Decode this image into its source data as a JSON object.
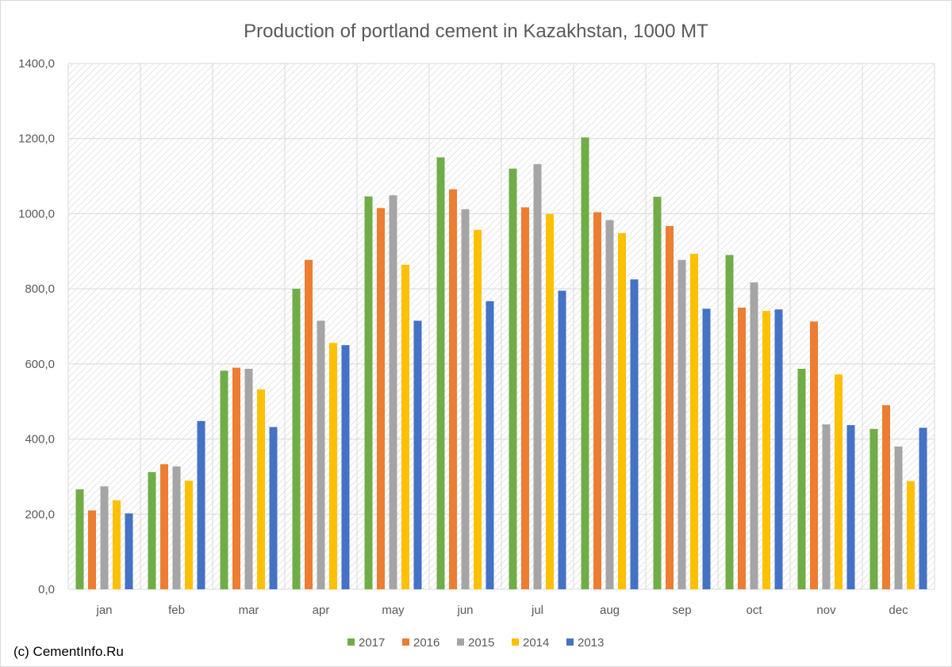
{
  "credit": "(c) CementInfo.Ru",
  "chart_data": {
    "type": "bar",
    "title": "Production of portland cement in Kazakhstan, 1000 MT",
    "xlabel": "",
    "ylabel": "",
    "ylim": [
      0,
      1400
    ],
    "yticks": [
      0,
      200,
      400,
      600,
      800,
      1000,
      1200,
      1400
    ],
    "ytick_labels": [
      "0,0",
      "200,0",
      "400,0",
      "600,0",
      "800,0",
      "1000,0",
      "1200,0",
      "1400,0"
    ],
    "grid": true,
    "legend_position": "bottom",
    "categories": [
      "jan",
      "feb",
      "mar",
      "apr",
      "may",
      "jun",
      "jul",
      "aug",
      "sep",
      "oct",
      "nov",
      "dec"
    ],
    "series": [
      {
        "name": "2017",
        "color": "#70ad47",
        "values": [
          266,
          312,
          582,
          800,
          1046,
          1150,
          1120,
          1203,
          1045,
          890,
          587,
          427
        ]
      },
      {
        "name": "2016",
        "color": "#ed7d31",
        "values": [
          210,
          333,
          590,
          877,
          1015,
          1065,
          1017,
          1004,
          967,
          750,
          713,
          490
        ]
      },
      {
        "name": "2015",
        "color": "#a5a5a5",
        "values": [
          274,
          327,
          587,
          715,
          1049,
          1012,
          1132,
          983,
          877,
          817,
          439,
          380
        ]
      },
      {
        "name": "2014",
        "color": "#ffc000",
        "values": [
          237,
          289,
          532,
          656,
          864,
          957,
          999,
          948,
          893,
          741,
          572,
          288
        ]
      },
      {
        "name": "2013",
        "color": "#4472c4",
        "values": [
          202,
          448,
          432,
          650,
          715,
          767,
          795,
          825,
          747,
          745,
          437,
          430
        ]
      }
    ]
  }
}
